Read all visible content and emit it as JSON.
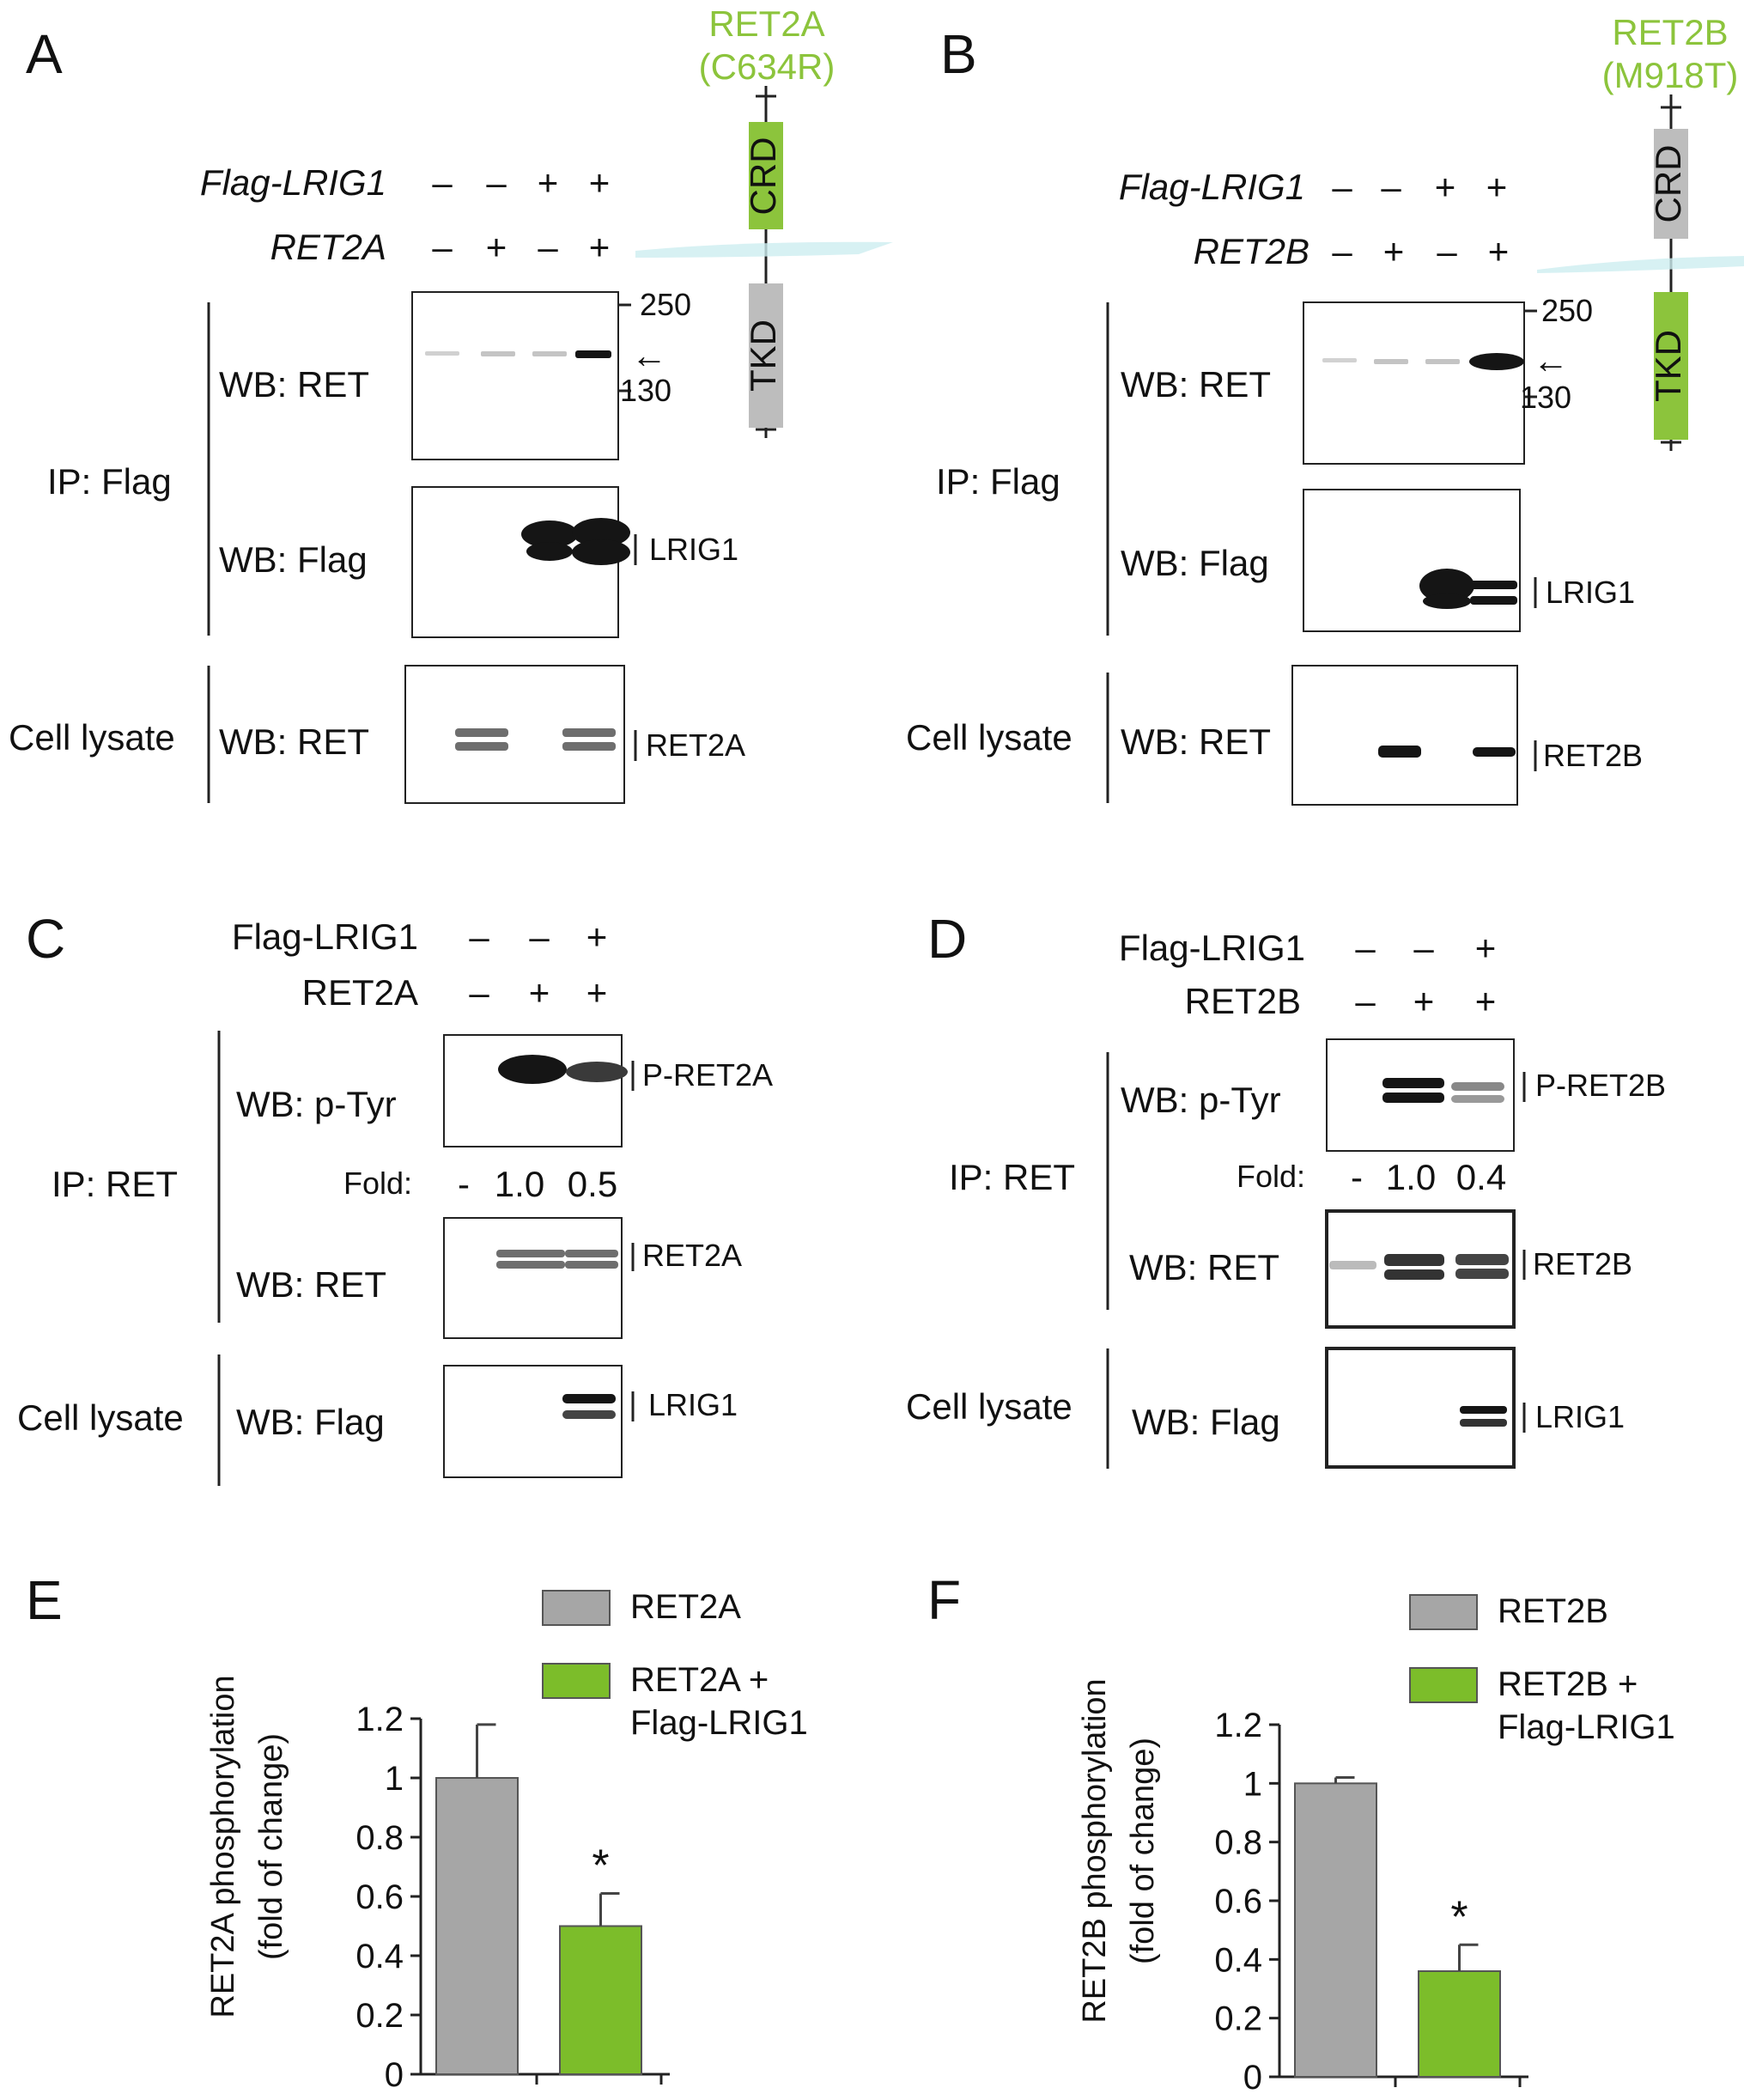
{
  "panels": {
    "A": {
      "letter": "A"
    },
    "B": {
      "letter": "B"
    },
    "C": {
      "letter": "C"
    },
    "D": {
      "letter": "D"
    },
    "E": {
      "letter": "E"
    },
    "F": {
      "letter": "F"
    }
  },
  "domain_diagram_A": {
    "name": "RET2A",
    "mutation": "(C634R)",
    "crd": "CRD",
    "tkd": "TKD",
    "highlight": "CRD",
    "highlight_color": "#8cc43c",
    "grey_color": "#bdbdbd"
  },
  "domain_diagram_B": {
    "name": "RET2B",
    "mutation": "(M918T)",
    "crd": "CRD",
    "tkd": "TKD",
    "highlight": "TKD",
    "highlight_color": "#8cc43c",
    "grey_color": "#bdbdbd"
  },
  "blot_A": {
    "row1_label": "Flag-LRIG1",
    "row1_signs": [
      "–",
      "–",
      "+",
      "+"
    ],
    "row2_label": "RET2A",
    "row2_signs": [
      "–",
      "+",
      "–",
      "+"
    ],
    "ip_label": "IP: Flag",
    "wb_ret": "WB: RET",
    "wb_flag": "WB: Flag",
    "lysate_label": "Cell lysate",
    "lysate_wb": "WB: RET",
    "marker_high": "250",
    "marker_low": "130",
    "arrow": "←",
    "lrig1_label": "LRIG1",
    "ret_label": "RET2A"
  },
  "blot_B": {
    "row1_label": "Flag-LRIG1",
    "row1_signs": [
      "–",
      "–",
      "+",
      "+"
    ],
    "row2_label": "RET2B",
    "row2_signs": [
      "–",
      "+",
      "–",
      "+"
    ],
    "ip_label": "IP: Flag",
    "wb_ret": "WB: RET",
    "wb_flag": "WB: Flag",
    "lysate_label": "Cell lysate",
    "lysate_wb": "WB: RET",
    "marker_high": "250",
    "marker_low": "130",
    "arrow": "←",
    "lrig1_label": "LRIG1",
    "ret_label": "RET2B"
  },
  "blot_C": {
    "row1_label": "Flag-LRIG1",
    "row1_signs": [
      "–",
      "–",
      "+"
    ],
    "row2_label": "RET2A",
    "row2_signs": [
      "–",
      "+",
      "+"
    ],
    "ip_label": "IP: RET",
    "wb_ptyr": "WB: p-Tyr",
    "wb_ret": "WB: RET",
    "fold_label": "Fold:",
    "fold_values": [
      "-",
      "1.0",
      "0.5"
    ],
    "lysate_label": "Cell lysate",
    "lysate_wb": "WB: Flag",
    "pret_label": "P-RET2A",
    "ret_label": "RET2A",
    "lrig1_label": "LRIG1"
  },
  "blot_D": {
    "row1_label": "Flag-LRIG1",
    "row1_signs": [
      "–",
      "–",
      "+"
    ],
    "row2_label": "RET2B",
    "row2_signs": [
      "–",
      "+",
      "+"
    ],
    "ip_label": "IP: RET",
    "wb_ptyr": "WB: p-Tyr",
    "wb_ret": "WB: RET",
    "fold_label": "Fold:",
    "fold_values": [
      "-",
      "1.0",
      "0.4"
    ],
    "lysate_label": "Cell lysate",
    "lysate_wb": "WB: Flag",
    "pret_label": "P-RET2B",
    "ret_label": "RET2B",
    "lrig1_label": "LRIG1"
  },
  "chart_data": [
    {
      "type": "bar",
      "panel": "E",
      "categories": [
        "RET2A",
        "RET2A + Flag-LRIG1"
      ],
      "legend": [
        {
          "name": "RET2A",
          "color": "#a6a6a6"
        },
        {
          "name_line1": "RET2A +",
          "name_line2": "Flag-LRIG1",
          "color": "#7cbd2a"
        }
      ],
      "values": [
        1.0,
        0.5
      ],
      "errors": [
        0.18,
        0.11
      ],
      "significance": [
        "",
        "*"
      ],
      "colors": [
        "#a6a6a6",
        "#7cbd2a"
      ],
      "ylabel_line1": "RET2A phosphorylation",
      "ylabel_line2": "(fold of change)",
      "ylim": [
        0,
        1.2
      ],
      "yticks": [
        "0",
        "0.2",
        "0.4",
        "0.6",
        "0.8",
        "1",
        "1.2"
      ],
      "legend_position": "top-right"
    },
    {
      "type": "bar",
      "panel": "F",
      "categories": [
        "RET2B",
        "RET2B + Flag-LRIG1"
      ],
      "legend": [
        {
          "name": "RET2B",
          "color": "#a6a6a6"
        },
        {
          "name_line1": "RET2B +",
          "name_line2": "Flag-LRIG1",
          "color": "#7cbd2a"
        }
      ],
      "values": [
        1.0,
        0.36
      ],
      "errors": [
        0.02,
        0.09
      ],
      "significance": [
        "",
        "*"
      ],
      "colors": [
        "#a6a6a6",
        "#7cbd2a"
      ],
      "ylabel_line1": "RET2B phosphorylation",
      "ylabel_line2": "(fold of change)",
      "ylim": [
        0,
        1.2
      ],
      "yticks": [
        "0",
        "0.2",
        "0.4",
        "0.6",
        "0.8",
        "1",
        "1.2"
      ],
      "legend_position": "top-right"
    }
  ]
}
